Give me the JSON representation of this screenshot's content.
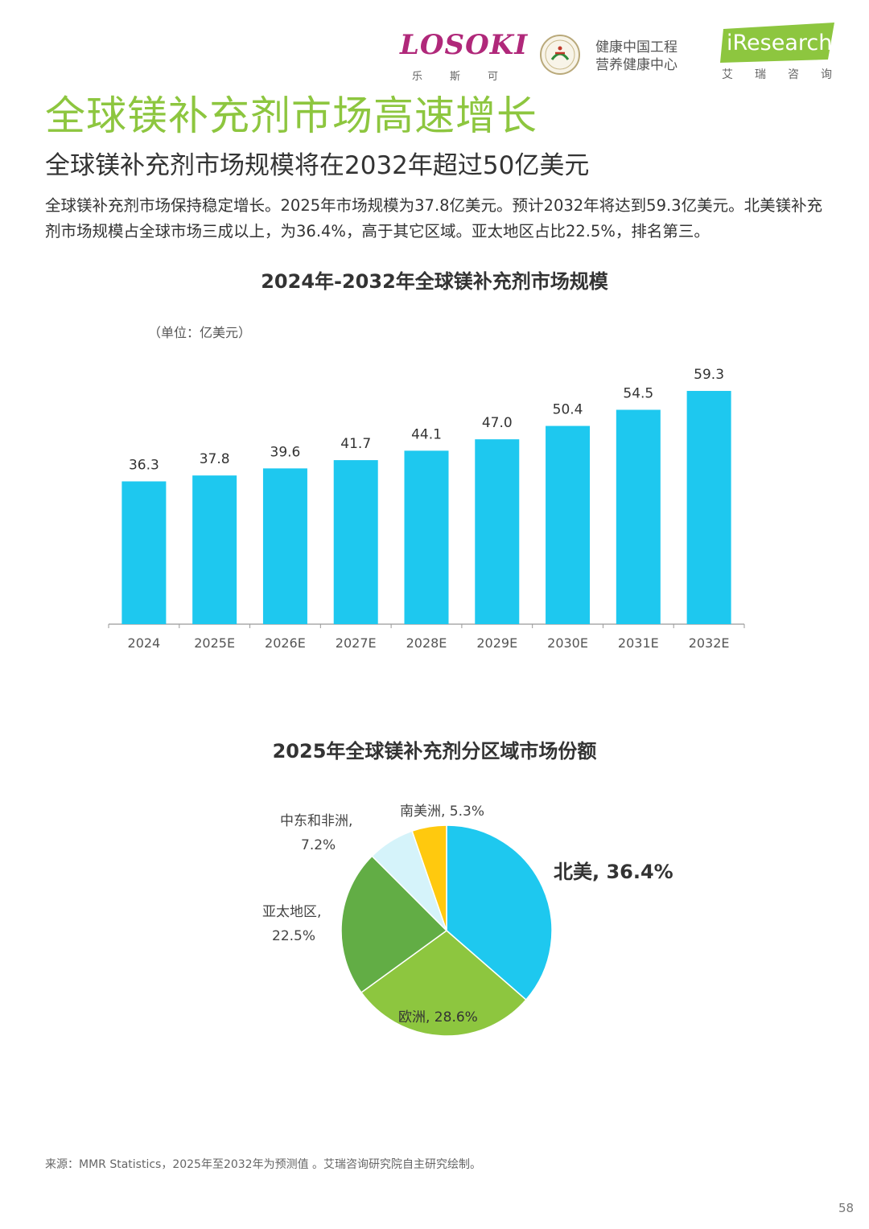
{
  "header": {
    "logo_losoki": "LOSOKI",
    "logo_losoki_cn": "乐斯可",
    "partner_line1": "健康中国工程",
    "partner_line2": "营养健康中心",
    "logo_iresearch": "iResearch",
    "logo_iresearch_cn": "艾瑞咨询"
  },
  "page": {
    "title": "全球镁补充剂市场高速增长",
    "subtitle": "全球镁补充剂市场规模将在2032年超过50亿美元",
    "description": "全球镁补充剂市场保持稳定增长。2025年市场规模为37.8亿美元。预计2032年将达到59.3亿美元。北美镁补充剂市场规模占全球市场三成以上，为36.4%，高于其它区域。亚太地区占比22.5%，排名第三。",
    "source": "来源：MMR Statistics，2025年至2032年为预测值 。艾瑞咨询研究院自主研究绘制。",
    "page_number": "58"
  },
  "colors": {
    "title_green": "#8dc63f",
    "bar_blue": "#1ec8ef",
    "brand_magenta": "#b0287a"
  },
  "chart_data": [
    {
      "type": "bar",
      "title": "2024年-2032年全球镁补充剂市场规模",
      "unit": "（单位：亿美元）",
      "categories": [
        "2024",
        "2025E",
        "2026E",
        "2027E",
        "2028E",
        "2029E",
        "2030E",
        "2031E",
        "2032E"
      ],
      "values": [
        36.3,
        37.8,
        39.6,
        41.7,
        44.1,
        47.0,
        50.4,
        54.5,
        59.3
      ],
      "value_labels": [
        "36.3",
        "37.8",
        "39.6",
        "41.7",
        "44.1",
        "47.0",
        "50.4",
        "54.5",
        "59.3"
      ],
      "ylim": [
        0,
        70
      ],
      "grid": false
    },
    {
      "type": "pie",
      "title": "2025年全球镁补充剂分区域市场份额",
      "slices": [
        {
          "name": "北美",
          "label": "北美, 36.4%",
          "value": 36.4,
          "color": "#1ec8ef"
        },
        {
          "name": "欧洲",
          "label": "欧洲, 28.6%",
          "value": 28.6,
          "color": "#8dc63f"
        },
        {
          "name": "亚太地区",
          "label_line1": "亚太地区,",
          "label_line2": "22.5%",
          "value": 22.5,
          "color": "#62ad45"
        },
        {
          "name": "中东和非洲",
          "label_line1": "中东和非洲,",
          "label_line2": "7.2%",
          "value": 7.2,
          "color": "#d5f3fa"
        },
        {
          "name": "南美洲",
          "label": "南美洲, 5.3%",
          "value": 5.3,
          "color": "#ffc90e"
        }
      ]
    }
  ]
}
